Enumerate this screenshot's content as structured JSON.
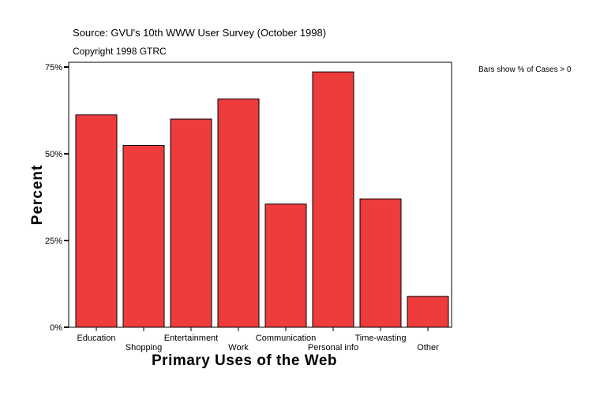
{
  "chart_data": {
    "type": "bar",
    "source": "Source: GVU's 10th WWW User Survey (October 1998)",
    "copyright": "Copyright 1998 GTRC",
    "note": "Bars show % of Cases > 0",
    "xlabel": "Primary Uses of the Web",
    "ylabel": "Percent",
    "ylim": [
      0,
      75
    ],
    "yticks": [
      0,
      25,
      50,
      75
    ],
    "ytick_labels": [
      "0%",
      "25%",
      "50%",
      "75%"
    ],
    "categories": [
      "Education",
      "Shopping",
      "Entertainment",
      "Work",
      "Communication",
      "Personal info",
      "Time-wasting",
      "Other"
    ],
    "values": [
      61.2,
      52.4,
      60.0,
      65.8,
      35.5,
      73.6,
      37.0,
      8.9
    ],
    "bar_color": "#ee3b3b",
    "grid": false,
    "legend": "none"
  }
}
